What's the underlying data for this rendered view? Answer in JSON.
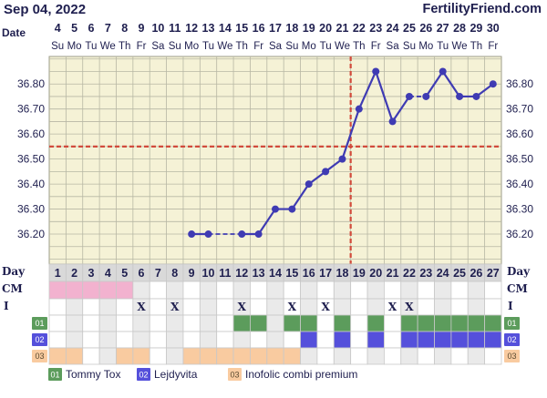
{
  "header": {
    "date_title": "Sep 04, 2022",
    "brand": "FertilityFriend.com"
  },
  "labels": {
    "date_row": "Date",
    "day_row": "Day",
    "cm_row": "CM",
    "i_row": "I"
  },
  "colors": {
    "background": "#f5f2d6",
    "grid": "#b7b7a4",
    "line": "#3f3bb3",
    "coverline": "#d24b3c",
    "tommy": "#5c9c5c",
    "lejdyvita": "#5550db",
    "inofolic": "#f9cba0",
    "cm_pink": "#f2b2cf",
    "row_light": "#ffffff",
    "row_gray": "#eaeaea"
  },
  "chart_data": {
    "type": "line",
    "title": "",
    "xlabel": "Day",
    "ylabel": "",
    "dates": [
      "4",
      "5",
      "6",
      "7",
      "8",
      "9",
      "10",
      "11",
      "12",
      "13",
      "14",
      "15",
      "16",
      "17",
      "18",
      "19",
      "20",
      "21",
      "22",
      "23",
      "24",
      "25",
      "26",
      "27",
      "28",
      "29",
      "30"
    ],
    "weekdays": [
      "Su",
      "Mo",
      "Tu",
      "We",
      "Th",
      "Fr",
      "Sa",
      "Su",
      "Mo",
      "Tu",
      "We",
      "Th",
      "Fr",
      "Sa",
      "Su",
      "Mo",
      "Tu",
      "We",
      "Th",
      "Fr",
      "Sa",
      "Su",
      "Mo",
      "Tu",
      "We",
      "Th",
      "Fr"
    ],
    "cycle_days": [
      "1",
      "2",
      "3",
      "4",
      "5",
      "6",
      "7",
      "8",
      "9",
      "10",
      "11",
      "12",
      "13",
      "14",
      "15",
      "16",
      "17",
      "18",
      "19",
      "20",
      "21",
      "22",
      "23",
      "24",
      "25",
      "26",
      "27"
    ],
    "y_ticks": [
      "36.20",
      "36.30",
      "36.40",
      "36.50",
      "36.60",
      "36.70",
      "36.80"
    ],
    "ylim": [
      36.08,
      36.91
    ],
    "temperatures": [
      null,
      null,
      null,
      null,
      null,
      null,
      null,
      null,
      36.2,
      36.2,
      null,
      36.2,
      36.2,
      36.3,
      36.3,
      36.4,
      36.45,
      36.5,
      36.7,
      36.85,
      36.65,
      36.75,
      36.75,
      36.85,
      36.75,
      36.75,
      36.8
    ],
    "dashed_segments": [
      [
        9,
        12
      ],
      [
        21,
        22
      ]
    ],
    "coverline": 36.55,
    "ovulation_day": 18,
    "grid": true
  },
  "cm_days": [
    1,
    2,
    3,
    4,
    5
  ],
  "intercourse_days": [
    6,
    8,
    12,
    15,
    17,
    21,
    22
  ],
  "medications": [
    {
      "code": "01",
      "name": "Tommy Tox",
      "color_key": "tommy",
      "days": [
        12,
        13,
        15,
        16,
        18,
        20,
        22,
        23,
        24,
        25,
        26,
        27
      ]
    },
    {
      "code": "02",
      "name": "Lejdyvita",
      "color_key": "lejdyvita",
      "days": [
        16,
        18,
        20,
        22,
        23,
        24,
        25,
        26,
        27
      ]
    },
    {
      "code": "03",
      "name": "Inofolic combi premium",
      "color_key": "inofolic",
      "days": [
        1,
        2,
        5,
        6,
        9,
        10,
        11,
        12,
        13,
        14,
        15
      ]
    }
  ]
}
